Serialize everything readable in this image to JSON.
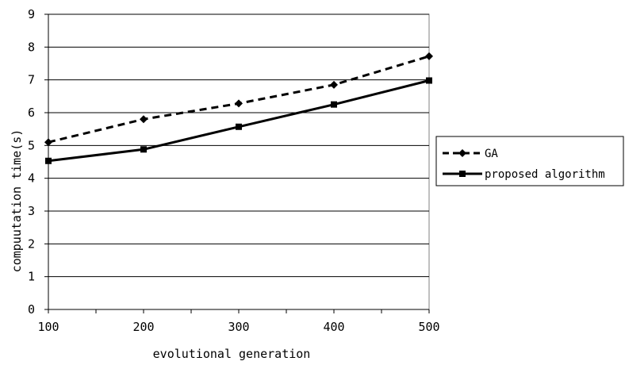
{
  "chart_data": {
    "type": "line",
    "xlabel": "evolutional generation",
    "ylabel": "compuutation time(s)",
    "x": [
      100,
      200,
      300,
      400,
      500
    ],
    "x_ticks": [
      "100",
      "200",
      "300",
      "400",
      "500"
    ],
    "y_ticks": [
      "0",
      "1",
      "2",
      "3",
      "4",
      "5",
      "6",
      "7",
      "8",
      "9"
    ],
    "xlim": [
      100,
      500
    ],
    "ylim": [
      0,
      9
    ],
    "grid": "horizontal",
    "legend_position": "right",
    "series": [
      {
        "name": "GA",
        "values": [
          5.1,
          5.8,
          6.28,
          6.85,
          7.72
        ],
        "style": "dashed",
        "marker": "diamond",
        "color": "#000000"
      },
      {
        "name": "proposed algorithm",
        "values": [
          4.53,
          4.88,
          5.57,
          6.25,
          6.98
        ],
        "style": "solid",
        "marker": "square",
        "color": "#000000"
      }
    ]
  }
}
